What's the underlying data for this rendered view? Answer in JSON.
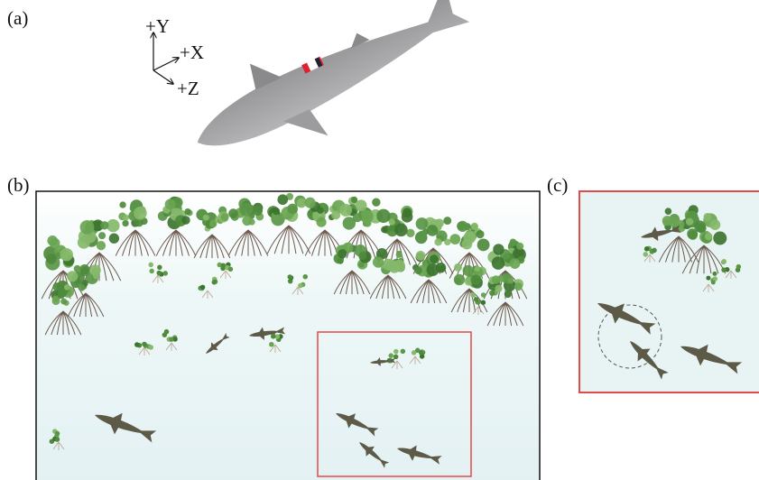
{
  "panels": {
    "a": {
      "label": "(a)",
      "axes": {
        "y": "+Y",
        "x": "+X",
        "z": "+Z"
      }
    },
    "b": {
      "label": "(b)"
    },
    "c": {
      "label": "(c)"
    }
  }
}
